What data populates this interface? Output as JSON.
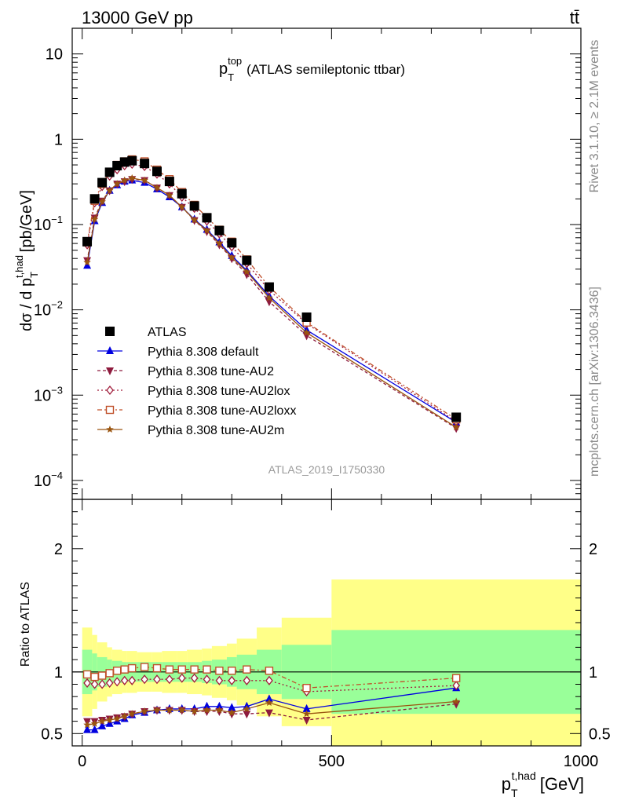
{
  "header": {
    "left": "13000 GeV pp",
    "right": "tt̄"
  },
  "side": {
    "rivet": "Rivet 3.1.10, ≥ 2.1M events",
    "mcplots": "mcplots.cern.ch [arXiv:1306.3436]"
  },
  "chart_data": [
    {
      "type": "line",
      "panel": "main",
      "title": "p_T^top (ATLAS semileptonic ttbar)",
      "watermark": "ATLAS_2019_I1750330",
      "xlabel": "p_T^{t,had} [GeV]",
      "ylabel": "dσ / d p_T^{t,had} [pb/GeV]",
      "xlim": [
        -20,
        1000
      ],
      "ylim": [
        6e-05,
        20
      ],
      "yscale": "log",
      "ytick_labels": [
        "10^-4",
        "10^-3",
        "10^-2",
        "10^-1",
        "1",
        "10"
      ],
      "legend_position": "lower-left",
      "x": [
        10,
        25,
        40,
        55,
        70,
        85,
        100,
        125,
        150,
        175,
        200,
        225,
        250,
        275,
        300,
        330,
        375,
        450,
        750
      ],
      "series": [
        {
          "name": "ATLAS",
          "color": "#000000",
          "marker": "filled-square",
          "dash": "none",
          "values": [
            0.063,
            0.2,
            0.31,
            0.41,
            0.49,
            0.54,
            0.56,
            0.52,
            0.42,
            0.32,
            0.23,
            0.165,
            0.12,
            0.085,
            0.061,
            0.038,
            0.0185,
            0.0082,
            0.00055
          ]
        },
        {
          "name": "Pythia 8.308 default",
          "color": "#0000e0",
          "marker": "filled-triangle",
          "dash": "none",
          "values": [
            0.033,
            0.11,
            0.18,
            0.25,
            0.29,
            0.32,
            0.33,
            0.31,
            0.26,
            0.21,
            0.16,
            0.115,
            0.087,
            0.062,
            0.043,
            0.029,
            0.0145,
            0.0058,
            0.00048
          ]
        },
        {
          "name": "Pythia 8.308 tune-AU2",
          "color": "#8e1b3e",
          "marker": "filled-triangle-down",
          "dash": "4,3",
          "values": [
            0.038,
            0.12,
            0.19,
            0.25,
            0.3,
            0.32,
            0.34,
            0.33,
            0.27,
            0.22,
            0.16,
            0.112,
            0.083,
            0.058,
            0.04,
            0.026,
            0.0125,
            0.005,
            0.00041
          ]
        },
        {
          "name": "Pythia 8.308 tune-AU2lox",
          "color": "#a01c3a",
          "marker": "open-diamond",
          "dash": "2,3",
          "values": [
            0.058,
            0.18,
            0.28,
            0.37,
            0.44,
            0.49,
            0.51,
            0.48,
            0.39,
            0.3,
            0.21,
            0.155,
            0.11,
            0.078,
            0.055,
            0.035,
            0.017,
            0.0069,
            0.00049
          ]
        },
        {
          "name": "Pythia 8.308 tune-AU2loxx",
          "color": "#c0502a",
          "marker": "open-square",
          "dash": "6,3,2,3",
          "values": [
            0.062,
            0.19,
            0.3,
            0.41,
            0.5,
            0.55,
            0.58,
            0.55,
            0.44,
            0.34,
            0.24,
            0.17,
            0.122,
            0.087,
            0.063,
            0.039,
            0.0187,
            0.0071,
            0.00052
          ]
        },
        {
          "name": "Pythia 8.308 tune-AU2m",
          "color": "#9a5510",
          "marker": "filled-star",
          "dash": "none",
          "values": [
            0.036,
            0.115,
            0.185,
            0.25,
            0.3,
            0.33,
            0.35,
            0.33,
            0.27,
            0.22,
            0.16,
            0.113,
            0.085,
            0.06,
            0.041,
            0.028,
            0.0138,
            0.0054,
            0.00042
          ]
        }
      ]
    },
    {
      "type": "line",
      "panel": "ratio",
      "ylabel": "Ratio to ATLAS",
      "xlabel": "p_T^{t,had} [GeV]",
      "xlim": [
        -20,
        1000
      ],
      "ylim": [
        0.4,
        2.4
      ],
      "yscale": "linear",
      "ytick_labels": [
        "0.5",
        "1",
        "2"
      ],
      "xtick_labels": [
        "0",
        "500",
        "1000"
      ],
      "x": [
        10,
        25,
        40,
        55,
        70,
        85,
        100,
        125,
        150,
        175,
        200,
        225,
        250,
        275,
        300,
        330,
        375,
        450,
        750
      ],
      "bands": {
        "edges": [
          0,
          20,
          30,
          50,
          60,
          80,
          90,
          110,
          140,
          160,
          190,
          210,
          240,
          260,
          290,
          310,
          350,
          400,
          500,
          1000
        ],
        "green_half": [
          0.18,
          0.15,
          0.12,
          0.1,
          0.09,
          0.08,
          0.08,
          0.08,
          0.08,
          0.08,
          0.08,
          0.08,
          0.09,
          0.1,
          0.12,
          0.14,
          0.18,
          0.22,
          0.34
        ],
        "yellow_half": [
          0.36,
          0.3,
          0.24,
          0.2,
          0.18,
          0.17,
          0.17,
          0.16,
          0.16,
          0.17,
          0.17,
          0.18,
          0.19,
          0.21,
          0.23,
          0.27,
          0.36,
          0.44,
          0.75
        ]
      },
      "series": [
        {
          "name": "Pythia 8.308 default",
          "color": "#0000e0",
          "marker": "filled-triangle",
          "dash": "none",
          "values": [
            0.53,
            0.53,
            0.56,
            0.58,
            0.6,
            0.62,
            0.65,
            0.67,
            0.69,
            0.7,
            0.7,
            0.7,
            0.72,
            0.72,
            0.71,
            0.72,
            0.78,
            0.7,
            0.87
          ]
        },
        {
          "name": "Pythia 8.308 tune-AU2",
          "color": "#8e1b3e",
          "marker": "filled-triangle-down",
          "dash": "4,3",
          "values": [
            0.6,
            0.6,
            0.61,
            0.62,
            0.63,
            0.64,
            0.66,
            0.68,
            0.69,
            0.69,
            0.69,
            0.68,
            0.68,
            0.68,
            0.66,
            0.66,
            0.67,
            0.61,
            0.74
          ]
        },
        {
          "name": "Pythia 8.308 tune-AU2lox",
          "color": "#a01c3a",
          "marker": "open-diamond",
          "dash": "2,3",
          "values": [
            0.91,
            0.9,
            0.9,
            0.91,
            0.92,
            0.93,
            0.93,
            0.94,
            0.94,
            0.94,
            0.95,
            0.95,
            0.94,
            0.93,
            0.93,
            0.93,
            0.93,
            0.84,
            0.89
          ]
        },
        {
          "name": "Pythia 8.308 tune-AU2loxx",
          "color": "#c0502a",
          "marker": "open-square",
          "dash": "6,3,2,3",
          "values": [
            0.98,
            0.96,
            0.97,
            0.99,
            1.01,
            1.02,
            1.03,
            1.04,
            1.03,
            1.02,
            1.02,
            1.02,
            1.02,
            1.01,
            1.01,
            1.02,
            1.01,
            0.87,
            0.95
          ]
        },
        {
          "name": "Pythia 8.308 tune-AU2m",
          "color": "#9a5510",
          "marker": "filled-star",
          "dash": "none",
          "values": [
            0.57,
            0.58,
            0.6,
            0.61,
            0.62,
            0.64,
            0.66,
            0.68,
            0.69,
            0.69,
            0.69,
            0.68,
            0.69,
            0.69,
            0.67,
            0.7,
            0.75,
            0.66,
            0.76
          ]
        }
      ]
    }
  ]
}
